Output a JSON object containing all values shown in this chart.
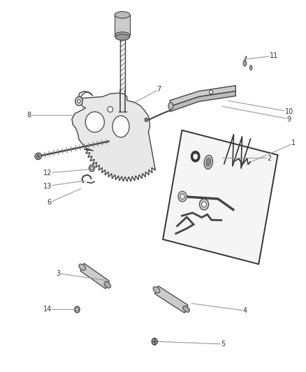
{
  "background_color": "#ffffff",
  "line_color": "#999999",
  "text_color": "#333333",
  "part_color": "#444444",
  "part_fill": "#e8e8e8",
  "figwidth": 4.38,
  "figheight": 5.33,
  "dpi": 100,
  "callouts": {
    "1": {
      "part": [
        0.82,
        0.565
      ],
      "label": [
        0.96,
        0.615
      ]
    },
    "2": {
      "part": [
        0.72,
        0.575
      ],
      "label": [
        0.88,
        0.575
      ]
    },
    "3": {
      "part": [
        0.36,
        0.245
      ],
      "label": [
        0.19,
        0.265
      ]
    },
    "4": {
      "part": [
        0.62,
        0.185
      ],
      "label": [
        0.8,
        0.165
      ]
    },
    "5": {
      "part": [
        0.51,
        0.082
      ],
      "label": [
        0.73,
        0.075
      ]
    },
    "6": {
      "part": [
        0.27,
        0.495
      ],
      "label": [
        0.16,
        0.455
      ]
    },
    "7": {
      "part": [
        0.43,
        0.72
      ],
      "label": [
        0.52,
        0.76
      ]
    },
    "8": {
      "part": [
        0.245,
        0.69
      ],
      "label": [
        0.095,
        0.69
      ]
    },
    "9": {
      "part": [
        0.72,
        0.715
      ],
      "label": [
        0.945,
        0.68
      ]
    },
    "10": {
      "part": [
        0.74,
        0.73
      ],
      "label": [
        0.945,
        0.7
      ]
    },
    "11": {
      "part": [
        0.795,
        0.84
      ],
      "label": [
        0.895,
        0.85
      ]
    },
    "12": {
      "part": [
        0.295,
        0.545
      ],
      "label": [
        0.155,
        0.535
      ]
    },
    "13": {
      "part": [
        0.285,
        0.515
      ],
      "label": [
        0.155,
        0.5
      ]
    },
    "14": {
      "part": [
        0.255,
        0.168
      ],
      "label": [
        0.155,
        0.168
      ]
    }
  }
}
